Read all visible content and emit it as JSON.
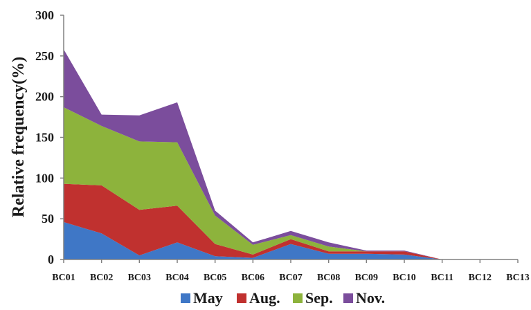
{
  "chart_data": {
    "type": "area",
    "stacked": true,
    "categories": [
      "BC01",
      "BC02",
      "BC03",
      "BC04",
      "BC05",
      "BC06",
      "BC07",
      "BC08",
      "BC09",
      "BC10",
      "BC11",
      "BC12",
      "BC13"
    ],
    "series": [
      {
        "name": "May",
        "color": "#3f77c6",
        "values": [
          46,
          32,
          5,
          21,
          4,
          2,
          19,
          7,
          7,
          6,
          0,
          0,
          0
        ]
      },
      {
        "name": "Aug.",
        "color": "#c0312f",
        "values": [
          47,
          59,
          56,
          45,
          15,
          4,
          6,
          3,
          3,
          4,
          0,
          0,
          0
        ]
      },
      {
        "name": "Sep.",
        "color": "#8db33c",
        "values": [
          94,
          73,
          84,
          78,
          35,
          12,
          5,
          6,
          0,
          0,
          0,
          0,
          0
        ]
      },
      {
        "name": "Nov.",
        "color": "#7b4d9c",
        "values": [
          71,
          14,
          32,
          49,
          6,
          3,
          5,
          5,
          1,
          1,
          0,
          0,
          0
        ]
      }
    ],
    "title": "",
    "xlabel": "",
    "ylabel": "Relative frequency(%)",
    "ylim": [
      0,
      300
    ],
    "yticks": [
      0,
      50,
      100,
      150,
      200,
      250,
      300
    ],
    "grid": false,
    "legend_position": "bottom"
  }
}
